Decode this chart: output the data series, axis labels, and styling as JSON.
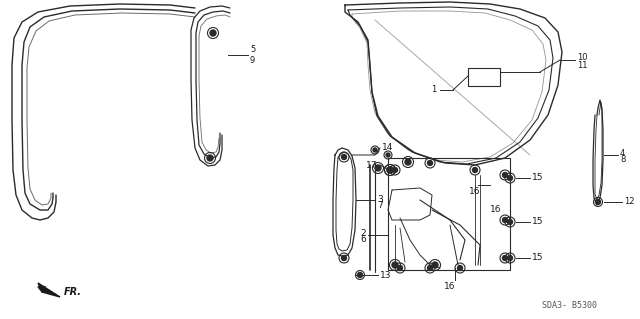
{
  "bg_color": "#ffffff",
  "line_color": "#2a2a2a",
  "text_color": "#1a1a1a",
  "watermark": "SDA3- B5300",
  "fr_label": "FR.",
  "figsize": [
    6.4,
    3.19
  ],
  "dpi": 100
}
